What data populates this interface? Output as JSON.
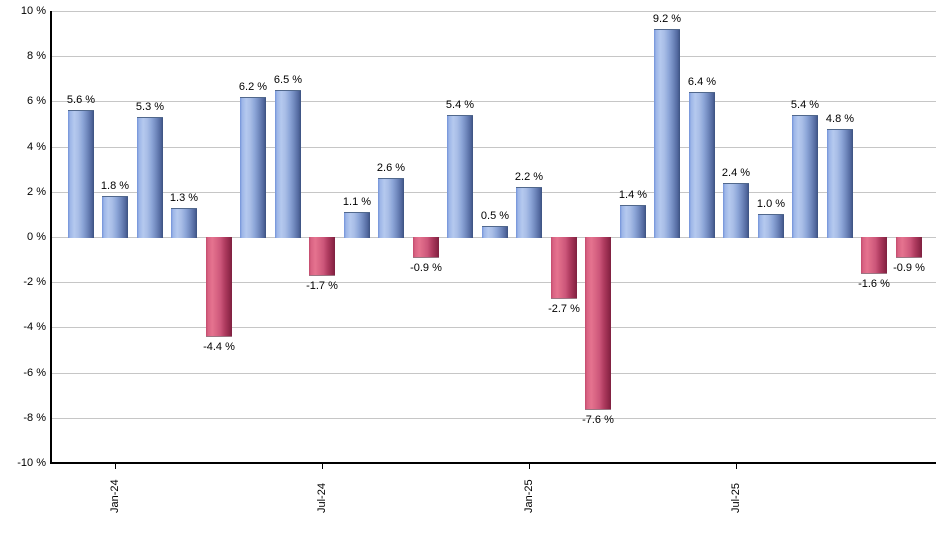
{
  "chart_data": {
    "type": "bar",
    "title": "",
    "xlabel": "",
    "ylabel": "",
    "ylim": [
      -10,
      10
    ],
    "y_tick_step": 2,
    "grid": true,
    "legend": "none",
    "y_tick_labels": [
      "10 %",
      "8 %",
      "6 %",
      "4 %",
      "2 %",
      "0 %",
      "-2 %",
      "-4 %",
      "-6 %",
      "-8 %",
      "-10 %"
    ],
    "bars": [
      {
        "value": 5.6,
        "label": "5.6 %"
      },
      {
        "value": 1.8,
        "label": "1.8 %"
      },
      {
        "value": 5.3,
        "label": "5.3 %"
      },
      {
        "value": 1.3,
        "label": "1.3 %"
      },
      {
        "value": -4.4,
        "label": "-4.4 %"
      },
      {
        "value": 6.2,
        "label": "6.2 %"
      },
      {
        "value": 6.5,
        "label": "6.5 %"
      },
      {
        "value": -1.7,
        "label": "-1.7 %"
      },
      {
        "value": 1.1,
        "label": "1.1 %"
      },
      {
        "value": 2.6,
        "label": "2.6 %"
      },
      {
        "value": -0.9,
        "label": "-0.9 %"
      },
      {
        "value": 5.4,
        "label": "5.4 %"
      },
      {
        "value": 0.5,
        "label": "0.5 %"
      },
      {
        "value": 2.2,
        "label": "2.2 %"
      },
      {
        "value": -2.7,
        "label": "-2.7 %"
      },
      {
        "value": -7.6,
        "label": "-7.6 %"
      },
      {
        "value": 1.4,
        "label": "1.4 %"
      },
      {
        "value": 9.2,
        "label": "9.2 %"
      },
      {
        "value": 6.4,
        "label": "6.4 %"
      },
      {
        "value": 2.4,
        "label": "2.4 %"
      },
      {
        "value": 1.0,
        "label": "1.0 %"
      },
      {
        "value": 5.4,
        "label": "5.4 %"
      },
      {
        "value": 4.8,
        "label": "4.8 %"
      },
      {
        "value": -1.6,
        "label": "-1.6 %"
      },
      {
        "value": -0.9,
        "label": "-0.9 %"
      }
    ],
    "x_ticks": [
      {
        "bar_index": 1,
        "label": "Jan-24"
      },
      {
        "bar_index": 7,
        "label": "Jul-24"
      },
      {
        "bar_index": 13,
        "label": "Jan-25"
      },
      {
        "bar_index": 19,
        "label": "Jul-25"
      }
    ],
    "colors": {
      "positive_bar": "#88a4e0",
      "positive_bar_highlight": "#b5c9ee",
      "positive_bar_shadow": "#3c5280",
      "negative_bar": "#cc4d72",
      "negative_bar_highlight": "#e5738f",
      "negative_bar_shadow": "#7e2040",
      "gridline": "#c6c6c6",
      "axis": "#000000",
      "background": "#ffffff",
      "label_text": "#000000"
    }
  }
}
